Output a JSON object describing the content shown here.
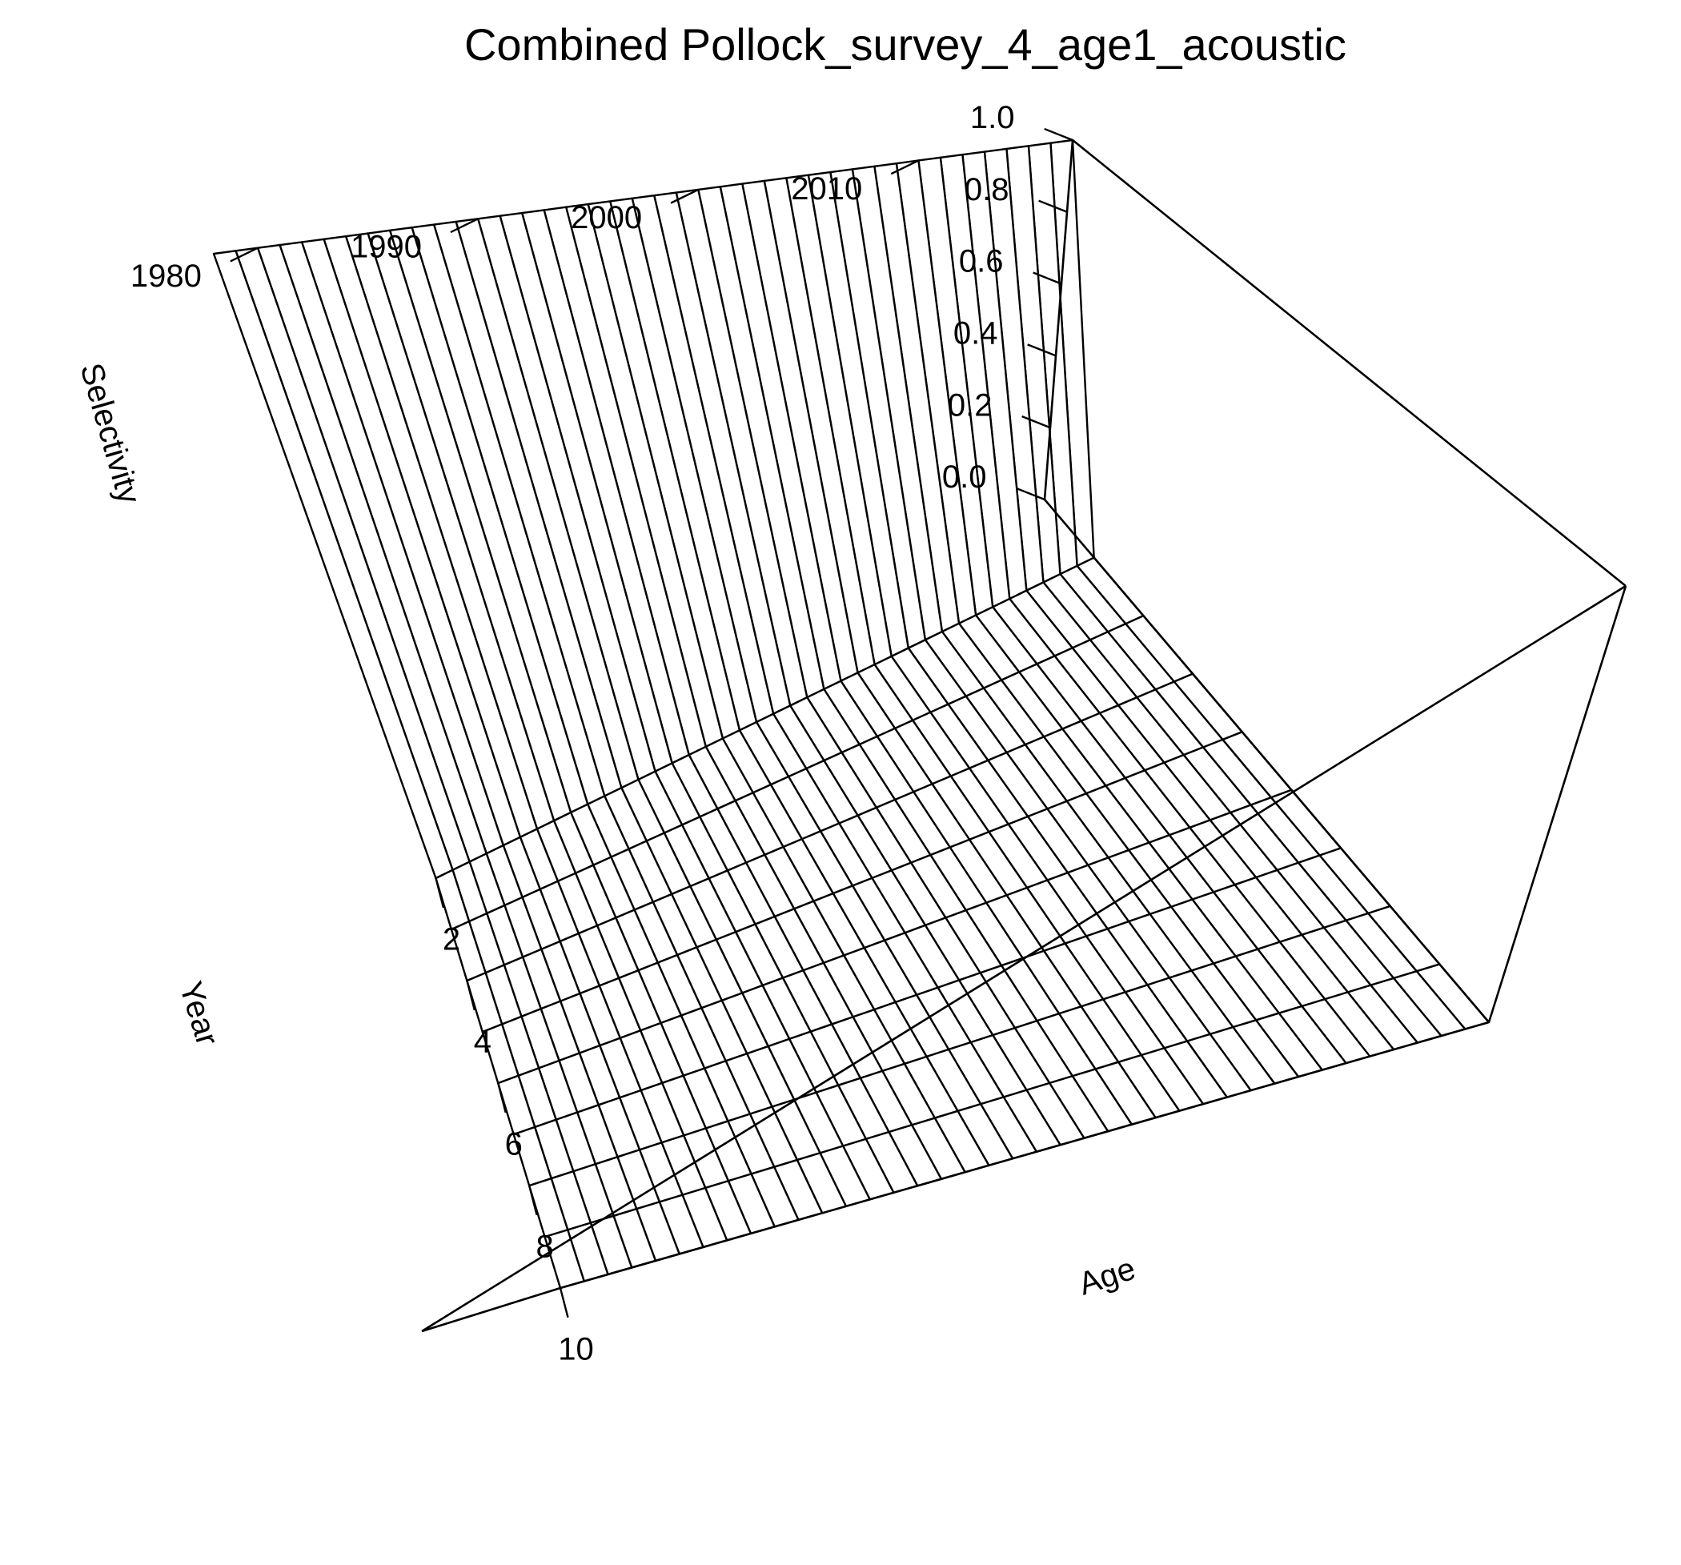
{
  "chart_data": {
    "type": "surface",
    "title": "Combined Pollock_survey_4_age1_acoustic",
    "xlabel": "Age",
    "ylabel": "Year",
    "zlabel": "Selectivity",
    "x_ticks": [
      2,
      4,
      6,
      8,
      10
    ],
    "y_ticks": [
      1980,
      1990,
      2000,
      2010
    ],
    "z_ticks": [
      "0.0",
      "0.2",
      "0.4",
      "0.6",
      "0.8",
      "1.0"
    ],
    "xlim": [
      1,
      10
    ],
    "ylim": [
      1978,
      2017
    ],
    "zlim": [
      0,
      1
    ],
    "ages": [
      1,
      2,
      3,
      4,
      5,
      6,
      7,
      8,
      9,
      10
    ],
    "years": [
      1978,
      1979,
      1980,
      1981,
      1982,
      1983,
      1984,
      1985,
      1986,
      1987,
      1988,
      1989,
      1990,
      1991,
      1992,
      1993,
      1994,
      1995,
      1996,
      1997,
      1998,
      1999,
      2000,
      2001,
      2002,
      2003,
      2004,
      2005,
      2006,
      2007,
      2008,
      2009,
      2010,
      2011,
      2012,
      2013,
      2014,
      2015,
      2016,
      2017
    ],
    "selectivity_by_age": [
      1,
      0,
      0,
      0,
      0,
      0,
      0,
      0,
      0,
      0
    ],
    "grid": false,
    "box": true
  },
  "colors": {
    "background": "#ffffff",
    "lines": "#000000"
  }
}
